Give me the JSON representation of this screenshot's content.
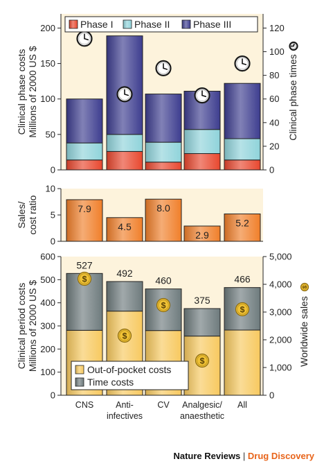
{
  "chart_data": [
    {
      "type": "bar",
      "stacked": true,
      "categories": [
        "CNS",
        "Anti-\ninfectives",
        "CV",
        "Analgesic/\nanaesthetic",
        "All"
      ],
      "series": [
        {
          "name": "Phase I",
          "color": "#e8472e",
          "values": [
            14,
            26,
            11,
            23,
            14
          ]
        },
        {
          "name": "Phase II",
          "color": "#8fd3da",
          "values": [
            24,
            24,
            28,
            34,
            30
          ]
        },
        {
          "name": "Phase III",
          "color": "#3d3d8f",
          "values": [
            62,
            139,
            68,
            54,
            78
          ]
        }
      ],
      "ylabel": "Clinical phase costs\nMillions of 2000 US $",
      "ylim": [
        0,
        220
      ],
      "yticks": [
        "0",
        "50",
        "100",
        "150",
        "200"
      ],
      "y2label": "Clinical phase times",
      "y2lim": [
        0,
        132
      ],
      "y2ticks": [
        "0",
        "20",
        "40",
        "60",
        "80",
        "100",
        "120"
      ],
      "clock_times": [
        111,
        64,
        86,
        63,
        90
      ],
      "clock_icon": "clock-icon",
      "legend_position": "top"
    },
    {
      "type": "bar",
      "categories": [
        "CNS",
        "Anti-\ninfectives",
        "CV",
        "Analgesic/\nanaesthetic",
        "All"
      ],
      "values": [
        7.9,
        4.5,
        8.0,
        2.9,
        5.2
      ],
      "value_labels": [
        "7.9",
        "4.5",
        "8.0",
        "2.9",
        "5.2"
      ],
      "color": "#f07f2a",
      "ylabel": "Sales/\ncost ratio",
      "ylim": [
        0,
        10
      ],
      "yticks": [
        "0",
        "5",
        "10"
      ]
    },
    {
      "type": "bar",
      "stacked": true,
      "categories": [
        "CNS",
        "Anti-\ninfectives",
        "CV",
        "Analgesic/\nanaesthetic",
        "All"
      ],
      "series": [
        {
          "name": "Out-of-pocket costs",
          "color": "#f7c95f",
          "values": [
            281,
            364,
            280,
            256,
            282
          ]
        },
        {
          "name": "Time costs",
          "color": "#6e7b7d",
          "values": [
            246,
            128,
            180,
            119,
            184
          ]
        }
      ],
      "totals": [
        "527",
        "492",
        "460",
        "375",
        "466"
      ],
      "ylabel": "Clinical period costs\nMillions of 2000 US $",
      "ylim": [
        0,
        600
      ],
      "yticks": [
        "0",
        "100",
        "200",
        "300",
        "400",
        "500",
        "600"
      ],
      "y2label": "Worldwide sales",
      "y2lim": [
        0,
        5000
      ],
      "y2ticks": [
        "0",
        "1,000",
        "2,000",
        "3,000",
        "4,000",
        "5,000"
      ],
      "sales": [
        4200,
        2150,
        3250,
        1250,
        3100
      ],
      "sales_icon": "dollar-coin-icon",
      "legend_position": "bottom-left"
    }
  ],
  "footer": {
    "journal": "Nature Reviews",
    "separator": " | ",
    "subtitle": "Drug Discovery"
  },
  "colors": {
    "panel_background": "#fdf3dc",
    "axis": "#222222",
    "coin": "#f0c235"
  }
}
